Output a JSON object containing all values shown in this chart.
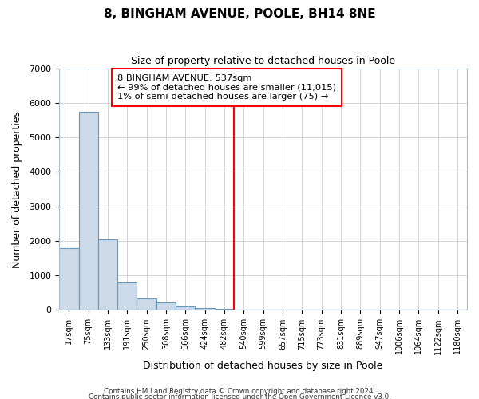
{
  "title": "8, BINGHAM AVENUE, POOLE, BH14 8NE",
  "subtitle": "Size of property relative to detached houses in Poole",
  "xlabel": "Distribution of detached houses by size in Poole",
  "ylabel": "Number of detached properties",
  "bar_labels": [
    "17sqm",
    "75sqm",
    "133sqm",
    "191sqm",
    "250sqm",
    "308sqm",
    "366sqm",
    "424sqm",
    "482sqm",
    "540sqm",
    "599sqm",
    "657sqm",
    "715sqm",
    "773sqm",
    "831sqm",
    "889sqm",
    "947sqm",
    "1006sqm",
    "1064sqm",
    "1122sqm",
    "1180sqm"
  ],
  "bar_values": [
    1780,
    5750,
    2050,
    800,
    340,
    215,
    110,
    65,
    30,
    10,
    5,
    0,
    0,
    0,
    0,
    0,
    0,
    0,
    0,
    0,
    0
  ],
  "bar_color": "#ccd9e8",
  "bar_edge_color": "#6699bb",
  "property_line_x": 9.0,
  "property_line_color": "red",
  "annotation_line1": "8 BINGHAM AVENUE: 537sqm",
  "annotation_line2": "← 99% of detached houses are smaller (11,015)",
  "annotation_line3": "1% of semi-detached houses are larger (75) →",
  "annotation_box_color": "white",
  "annotation_box_edge_color": "red",
  "ylim": [
    0,
    7000
  ],
  "yticks": [
    0,
    1000,
    2000,
    3000,
    4000,
    5000,
    6000,
    7000
  ],
  "footer1": "Contains HM Land Registry data © Crown copyright and database right 2024.",
  "footer2": "Contains public sector information licensed under the Open Government Licence v3.0.",
  "background_color": "#ffffff",
  "plot_background": "#ffffff",
  "grid_color": "#cccccc",
  "title_fontsize": 11,
  "subtitle_fontsize": 9
}
